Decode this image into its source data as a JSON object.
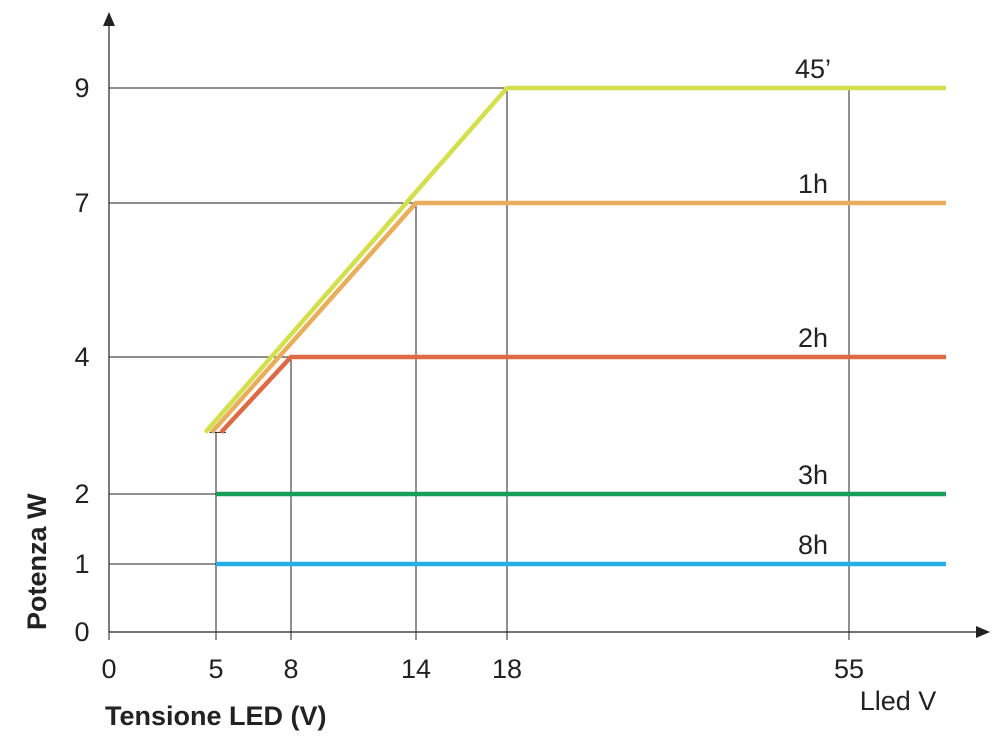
{
  "chart_data": {
    "type": "line",
    "xlabel": "Tensione LED (V)",
    "ylabel": "Potenza W",
    "x_unit_label": "Lled V",
    "x_ticks": [
      "0",
      "5",
      "8",
      "14",
      "18",
      "55"
    ],
    "y_ticks": [
      "0",
      "1",
      "2",
      "4",
      "7",
      "9"
    ],
    "xlim": [
      0,
      60
    ],
    "ylim": [
      0,
      10
    ],
    "grid": false,
    "series": [
      {
        "name": "45’",
        "color": "#d4df4e",
        "points": [
          [
            4.5,
            2.9
          ],
          [
            18,
            9
          ],
          [
            56,
            9
          ]
        ]
      },
      {
        "name": "1h",
        "color": "#e9ad5c",
        "points": [
          [
            4.8,
            2.9
          ],
          [
            14,
            7
          ],
          [
            56,
            7
          ]
        ]
      },
      {
        "name": "2h",
        "color": "#dd6a45",
        "points": [
          [
            5.2,
            2.9
          ],
          [
            8,
            4
          ],
          [
            56,
            4
          ]
        ]
      },
      {
        "name": "3h",
        "color": "#14a05a",
        "points": [
          [
            5,
            2
          ],
          [
            56,
            2
          ]
        ]
      },
      {
        "name": "8h",
        "color": "#23b0e6",
        "points": [
          [
            5,
            1
          ],
          [
            56,
            1
          ]
        ]
      }
    ]
  }
}
